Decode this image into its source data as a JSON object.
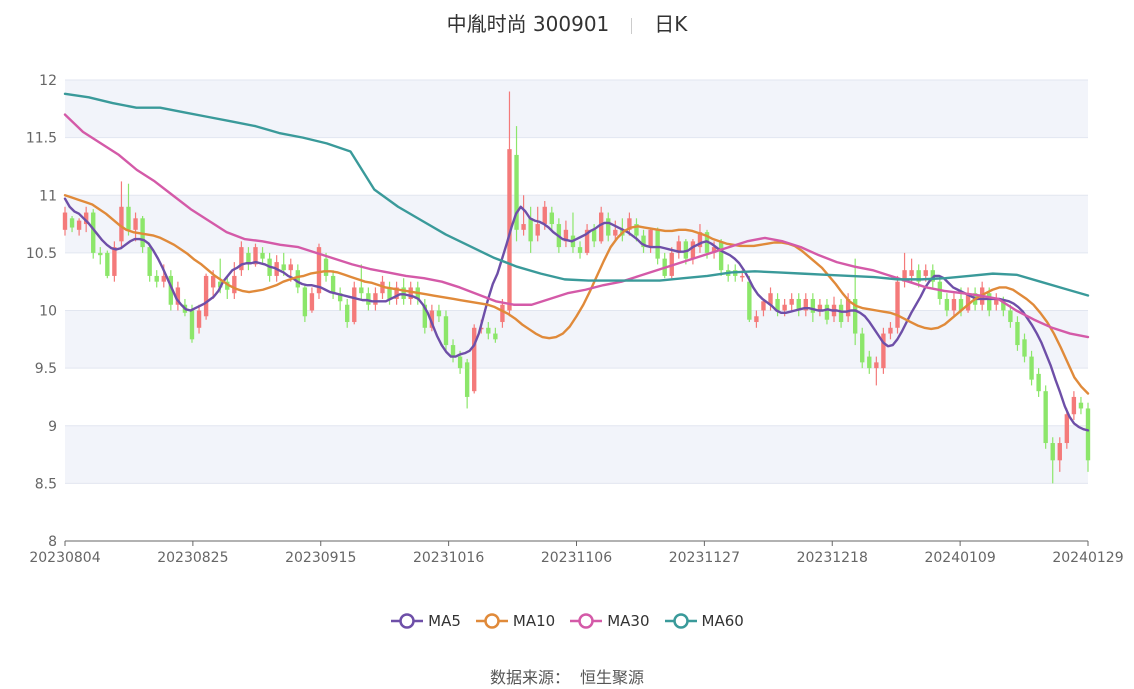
{
  "title": {
    "stock": "中胤时尚 300901",
    "period": "日K"
  },
  "source": {
    "label": "数据来源：",
    "value": "恒生聚源"
  },
  "colors": {
    "up": "#f47a7a",
    "down": "#8ce66a",
    "MA5": "#6e4fa8",
    "MA10": "#e08a3a",
    "MA30": "#d45aa8",
    "MA60": "#3a9a9a",
    "band": "#f2f4fa",
    "grid": "#e2e6f0"
  },
  "chart_data": {
    "type": "candlestick",
    "ylim": [
      8,
      12
    ],
    "yticks": [
      "8",
      "8.5",
      "9",
      "9.5",
      "10",
      "10.5",
      "11",
      "11.5",
      "12"
    ],
    "xticks": [
      "20230804",
      "20230825",
      "20230915",
      "20231016",
      "20231106",
      "20231127",
      "20231218",
      "20240109",
      "20240129"
    ],
    "candles": [
      [
        10.7,
        10.85,
        10.65,
        10.9
      ],
      [
        10.8,
        10.72,
        10.68,
        10.82
      ],
      [
        10.7,
        10.78,
        10.65,
        10.8
      ],
      [
        10.75,
        10.85,
        10.68,
        10.9
      ],
      [
        10.85,
        10.5,
        10.45,
        10.88
      ],
      [
        10.5,
        10.48,
        10.4,
        10.55
      ],
      [
        10.5,
        10.3,
        10.28,
        10.52
      ],
      [
        10.3,
        10.55,
        10.25,
        10.6
      ],
      [
        10.6,
        10.9,
        10.55,
        11.12
      ],
      [
        10.9,
        10.7,
        10.65,
        11.1
      ],
      [
        10.7,
        10.8,
        10.6,
        10.85
      ],
      [
        10.8,
        10.55,
        10.5,
        10.82
      ],
      [
        10.55,
        10.3,
        10.25,
        10.58
      ],
      [
        10.3,
        10.25,
        10.2,
        10.35
      ],
      [
        10.25,
        10.3,
        10.2,
        10.4
      ],
      [
        10.3,
        10.05,
        10.0,
        10.35
      ],
      [
        10.05,
        10.2,
        10.0,
        10.25
      ],
      [
        10.05,
        9.98,
        9.95,
        10.1
      ],
      [
        10.0,
        9.75,
        9.72,
        10.05
      ],
      [
        9.85,
        10.0,
        9.8,
        10.05
      ],
      [
        9.95,
        10.3,
        9.92,
        10.32
      ],
      [
        10.2,
        10.3,
        10.1,
        10.35
      ],
      [
        10.25,
        10.2,
        10.15,
        10.45
      ],
      [
        10.25,
        10.18,
        10.1,
        10.3
      ],
      [
        10.15,
        10.3,
        10.1,
        10.42
      ],
      [
        10.35,
        10.55,
        10.3,
        10.6
      ],
      [
        10.5,
        10.4,
        10.35,
        10.55
      ],
      [
        10.4,
        10.55,
        10.38,
        10.58
      ],
      [
        10.5,
        10.45,
        10.4,
        10.55
      ],
      [
        10.45,
        10.3,
        10.25,
        10.5
      ],
      [
        10.3,
        10.42,
        10.25,
        10.48
      ],
      [
        10.4,
        10.35,
        10.3,
        10.5
      ],
      [
        10.35,
        10.4,
        10.25,
        10.45
      ],
      [
        10.35,
        10.2,
        10.15,
        10.4
      ],
      [
        10.2,
        9.95,
        9.9,
        10.22
      ],
      [
        10.0,
        10.15,
        9.98,
        10.2
      ],
      [
        10.15,
        10.55,
        10.1,
        10.58
      ],
      [
        10.45,
        10.3,
        10.25,
        10.5
      ],
      [
        10.3,
        10.15,
        10.1,
        10.35
      ],
      [
        10.15,
        10.08,
        10.0,
        10.2
      ],
      [
        10.05,
        9.9,
        9.85,
        10.1
      ],
      [
        9.9,
        10.2,
        9.88,
        10.25
      ],
      [
        10.2,
        10.15,
        10.1,
        10.4
      ],
      [
        10.15,
        10.05,
        10.0,
        10.2
      ],
      [
        10.05,
        10.15,
        10.0,
        10.2
      ],
      [
        10.15,
        10.25,
        10.1,
        10.3
      ],
      [
        10.2,
        10.1,
        10.05,
        10.25
      ],
      [
        10.1,
        10.2,
        10.05,
        10.25
      ],
      [
        10.2,
        10.1,
        10.05,
        10.28
      ],
      [
        10.1,
        10.2,
        10.05,
        10.25
      ],
      [
        10.2,
        10.1,
        10.05,
        10.25
      ],
      [
        10.05,
        9.85,
        9.8,
        10.1
      ],
      [
        9.85,
        10.0,
        9.82,
        10.05
      ],
      [
        10.0,
        9.95,
        9.9,
        10.05
      ],
      [
        9.95,
        9.7,
        9.65,
        10.0
      ],
      [
        9.7,
        9.6,
        9.55,
        9.75
      ],
      [
        9.6,
        9.5,
        9.45,
        9.65
      ],
      [
        9.55,
        9.25,
        9.15,
        9.58
      ],
      [
        9.3,
        9.85,
        9.28,
        9.88
      ],
      [
        9.85,
        9.85,
        9.8,
        9.92
      ],
      [
        9.85,
        9.8,
        9.75,
        9.9
      ],
      [
        9.8,
        9.75,
        9.72,
        9.85
      ],
      [
        9.9,
        10.05,
        9.85,
        10.1
      ],
      [
        10.0,
        11.4,
        9.95,
        11.9
      ],
      [
        11.35,
        10.7,
        10.6,
        11.6
      ],
      [
        10.7,
        10.75,
        10.65,
        11.0
      ],
      [
        10.8,
        10.6,
        10.5,
        10.9
      ],
      [
        10.65,
        10.75,
        10.6,
        10.9
      ],
      [
        10.75,
        10.9,
        10.7,
        10.95
      ],
      [
        10.85,
        10.75,
        10.7,
        10.9
      ],
      [
        10.75,
        10.55,
        10.5,
        10.8
      ],
      [
        10.6,
        10.7,
        10.55,
        10.78
      ],
      [
        10.65,
        10.55,
        10.5,
        10.85
      ],
      [
        10.55,
        10.5,
        10.45,
        10.6
      ],
      [
        10.5,
        10.7,
        10.48,
        10.75
      ],
      [
        10.7,
        10.6,
        10.55,
        10.75
      ],
      [
        10.6,
        10.85,
        10.58,
        10.9
      ],
      [
        10.8,
        10.65,
        10.6,
        10.85
      ],
      [
        10.65,
        10.7,
        10.6,
        10.78
      ],
      [
        10.7,
        10.65,
        10.6,
        10.8
      ],
      [
        10.7,
        10.8,
        10.65,
        10.85
      ],
      [
        10.75,
        10.65,
        10.6,
        10.8
      ],
      [
        10.65,
        10.55,
        10.5,
        10.7
      ],
      [
        10.55,
        10.7,
        10.5,
        10.72
      ],
      [
        10.7,
        10.45,
        10.4,
        10.72
      ],
      [
        10.45,
        10.3,
        10.28,
        10.5
      ],
      [
        10.3,
        10.5,
        10.28,
        10.55
      ],
      [
        10.5,
        10.6,
        10.45,
        10.65
      ],
      [
        10.6,
        10.45,
        10.4,
        10.62
      ],
      [
        10.45,
        10.6,
        10.4,
        10.62
      ],
      [
        10.55,
        10.68,
        10.5,
        10.75
      ],
      [
        10.68,
        10.5,
        10.45,
        10.7
      ],
      [
        10.5,
        10.55,
        10.45,
        10.6
      ],
      [
        10.6,
        10.35,
        10.3,
        10.62
      ],
      [
        10.35,
        10.3,
        10.25,
        10.4
      ],
      [
        10.35,
        10.3,
        10.25,
        10.4
      ],
      [
        10.3,
        10.3,
        10.25,
        10.35
      ],
      [
        10.25,
        9.92,
        9.9,
        10.3
      ],
      [
        9.9,
        9.95,
        9.85,
        10.0
      ],
      [
        10.0,
        10.08,
        9.95,
        10.1
      ],
      [
        10.05,
        10.15,
        10.0,
        10.2
      ],
      [
        10.1,
        10.0,
        9.95,
        10.15
      ],
      [
        10.0,
        10.05,
        9.95,
        10.1
      ],
      [
        10.05,
        10.1,
        10.0,
        10.15
      ],
      [
        10.1,
        10.0,
        9.95,
        10.15
      ],
      [
        10.0,
        10.1,
        9.95,
        10.15
      ],
      [
        10.1,
        9.98,
        9.9,
        10.15
      ],
      [
        10.0,
        10.05,
        9.95,
        10.1
      ],
      [
        10.05,
        9.92,
        9.88,
        10.1
      ],
      [
        9.95,
        10.05,
        9.9,
        10.12
      ],
      [
        10.05,
        9.9,
        9.85,
        10.1
      ],
      [
        9.95,
        10.1,
        9.9,
        10.15
      ],
      [
        10.1,
        9.8,
        9.7,
        10.45
      ],
      [
        9.8,
        9.55,
        9.5,
        9.85
      ],
      [
        9.6,
        9.5,
        9.45,
        9.65
      ],
      [
        9.5,
        9.55,
        9.35,
        9.6
      ],
      [
        9.5,
        9.8,
        9.45,
        9.85
      ],
      [
        9.8,
        9.85,
        9.75,
        9.9
      ],
      [
        9.85,
        10.25,
        9.8,
        10.3
      ],
      [
        10.25,
        10.35,
        10.2,
        10.5
      ],
      [
        10.3,
        10.35,
        10.25,
        10.45
      ],
      [
        10.35,
        10.25,
        10.2,
        10.4
      ],
      [
        10.3,
        10.35,
        10.25,
        10.4
      ],
      [
        10.35,
        10.25,
        10.2,
        10.4
      ],
      [
        10.25,
        10.1,
        10.05,
        10.3
      ],
      [
        10.1,
        10.0,
        9.95,
        10.15
      ],
      [
        10.0,
        10.1,
        9.95,
        10.15
      ],
      [
        10.1,
        10.0,
        9.95,
        10.2
      ],
      [
        10.0,
        10.15,
        9.98,
        10.2
      ],
      [
        10.15,
        10.05,
        10.0,
        10.2
      ],
      [
        10.05,
        10.2,
        10.0,
        10.25
      ],
      [
        10.15,
        10.0,
        9.95,
        10.2
      ],
      [
        10.05,
        10.1,
        10.0,
        10.15
      ],
      [
        10.1,
        10.0,
        9.95,
        10.12
      ],
      [
        10.0,
        9.9,
        9.85,
        10.05
      ],
      [
        9.9,
        9.7,
        9.65,
        9.95
      ],
      [
        9.75,
        9.6,
        9.55,
        9.8
      ],
      [
        9.6,
        9.4,
        9.35,
        9.65
      ],
      [
        9.45,
        9.3,
        9.25,
        9.5
      ],
      [
        9.3,
        8.85,
        8.8,
        9.35
      ],
      [
        8.85,
        8.7,
        8.5,
        8.9
      ],
      [
        8.7,
        8.85,
        8.6,
        8.9
      ],
      [
        8.85,
        9.1,
        8.8,
        9.15
      ],
      [
        9.1,
        9.25,
        9.05,
        9.3
      ],
      [
        9.2,
        9.15,
        9.1,
        9.25
      ],
      [
        9.15,
        8.7,
        8.6,
        9.2
      ]
    ],
    "series": [
      {
        "name": "MA5",
        "values": [
          10.97,
          10.9,
          10.86,
          10.84,
          10.8,
          10.76,
          10.71,
          10.66,
          10.61,
          10.57,
          10.54,
          10.53,
          10.54,
          10.57,
          10.6,
          10.62,
          10.62,
          10.61,
          10.58,
          10.52,
          10.45,
          10.37,
          10.28,
          10.19,
          10.1,
          10.05,
          10.01,
          10.0,
          10.02,
          10.04,
          10.06,
          10.09,
          10.12,
          10.17,
          10.25,
          10.3,
          10.35,
          10.37,
          10.4,
          10.41,
          10.41,
          10.42,
          10.41,
          10.4,
          10.38,
          10.37,
          10.35,
          10.33,
          10.3,
          10.28,
          10.25,
          10.23,
          10.22,
          10.22,
          10.21,
          10.2,
          10.18,
          10.16,
          10.15,
          10.14,
          10.13,
          10.12,
          10.11,
          10.1,
          10.09,
          10.09,
          10.08,
          10.08,
          10.08,
          10.08,
          10.1,
          10.12,
          10.14,
          10.14,
          10.13,
          10.12,
          10.1,
          10.05,
          9.98,
          9.88,
          9.78,
          9.7,
          9.64,
          9.6,
          9.6,
          9.62,
          9.63,
          9.65,
          9.7,
          9.8,
          9.95,
          10.1,
          10.23,
          10.32,
          10.45,
          10.58,
          10.72,
          10.84,
          10.9,
          10.86,
          10.8,
          10.78,
          10.77,
          10.75,
          10.72,
          10.68,
          10.65,
          10.62,
          10.61,
          10.6,
          10.62,
          10.64,
          10.66,
          10.69,
          10.71,
          10.74,
          10.76,
          10.76,
          10.74,
          10.72,
          10.7,
          10.68,
          10.65,
          10.62,
          10.58,
          10.56,
          10.55,
          10.55,
          10.55,
          10.54,
          10.53,
          10.52,
          10.51,
          10.51,
          10.52,
          10.55,
          10.57,
          10.59,
          10.6,
          10.58,
          10.55,
          10.52,
          10.5,
          10.48,
          10.45,
          10.41,
          10.35,
          10.28,
          10.2,
          10.14,
          10.1,
          10.07,
          10.04,
          10.0,
          9.98,
          9.98,
          9.99,
          10.0,
          10.01,
          10.02,
          10.02,
          10.01,
          10.0,
          10.0,
          10.01,
          10.0,
          10.0,
          9.99,
          9.99,
          10.0,
          10.0,
          9.98,
          9.95,
          9.9,
          9.84,
          9.78,
          9.72,
          9.69,
          9.7,
          9.75,
          9.82,
          9.9,
          9.98,
          10.05,
          10.12,
          10.2,
          10.26,
          10.3,
          10.3,
          10.28,
          10.24,
          10.2,
          10.18,
          10.16,
          10.14,
          10.12,
          10.1,
          10.1,
          10.1,
          10.1,
          10.1,
          10.1,
          10.09,
          10.08,
          10.06,
          10.03,
          9.99,
          9.93,
          9.87,
          9.8,
          9.72,
          9.62,
          9.52,
          9.4,
          9.29,
          9.17,
          9.08,
          9.02,
          8.99,
          8.97,
          8.96
        ],
        "count_hint": "smooth"
      },
      {
        "name": "MA10",
        "values": [
          11.0,
          10.98,
          10.96,
          10.94,
          10.92,
          10.88,
          10.84,
          10.79,
          10.74,
          10.7,
          10.68,
          10.67,
          10.66,
          10.65,
          10.63,
          10.6,
          10.57,
          10.53,
          10.49,
          10.44,
          10.4,
          10.35,
          10.3,
          10.26,
          10.22,
          10.19,
          10.17,
          10.16,
          10.17,
          10.18,
          10.2,
          10.22,
          10.25,
          10.27,
          10.29,
          10.3,
          10.32,
          10.33,
          10.34,
          10.34,
          10.33,
          10.31,
          10.29,
          10.27,
          10.25,
          10.24,
          10.22,
          10.2,
          10.19,
          10.18,
          10.17,
          10.16,
          10.15,
          10.14,
          10.13,
          10.12,
          10.11,
          10.1,
          10.09,
          10.08,
          10.07,
          10.06,
          10.05,
          10.03,
          10.0,
          9.97,
          9.93,
          9.88,
          9.84,
          9.8,
          9.77,
          9.76,
          9.77,
          9.8,
          9.86,
          9.95,
          10.05,
          10.17,
          10.3,
          10.43,
          10.55,
          10.63,
          10.69,
          10.72,
          10.73,
          10.72,
          10.71,
          10.7,
          10.69,
          10.69,
          10.7,
          10.7,
          10.69,
          10.67,
          10.65,
          10.62,
          10.6,
          10.58,
          10.57,
          10.56,
          10.56,
          10.56,
          10.57,
          10.58,
          10.59,
          10.59,
          10.58,
          10.56,
          10.52,
          10.47,
          10.42,
          10.37,
          10.3,
          10.23,
          10.15,
          10.08,
          10.04,
          10.02,
          10.01,
          10.0,
          9.99,
          9.98,
          9.96,
          9.93,
          9.9,
          9.87,
          9.85,
          9.84,
          9.85,
          9.88,
          9.93,
          9.98,
          10.03,
          10.08,
          10.12,
          10.15,
          10.18,
          10.2,
          10.2,
          10.18,
          10.14,
          10.1,
          10.05,
          9.98,
          9.9,
          9.8,
          9.68,
          9.55,
          9.42,
          9.34,
          9.28
        ],
        "count_hint": "smooth"
      },
      {
        "name": "MA30",
        "values": [
          11.7,
          11.55,
          11.45,
          11.35,
          11.22,
          11.12,
          11.0,
          10.88,
          10.78,
          10.68,
          10.62,
          10.6,
          10.57,
          10.55,
          10.5,
          10.45,
          10.4,
          10.36,
          10.33,
          10.3,
          10.28,
          10.25,
          10.2,
          10.14,
          10.08,
          10.05,
          10.05,
          10.1,
          10.15,
          10.18,
          10.22,
          10.25,
          10.3,
          10.35,
          10.4,
          10.45,
          10.5,
          10.55,
          10.6,
          10.63,
          10.6,
          10.55,
          10.48,
          10.42,
          10.38,
          10.35,
          10.3,
          10.25,
          10.2,
          10.17,
          10.15,
          10.13,
          10.1,
          10.0,
          9.92,
          9.85,
          9.8,
          9.77
        ],
        "count_hint": "smooth"
      },
      {
        "name": "MA60",
        "values": [
          11.88,
          11.85,
          11.8,
          11.76,
          11.76,
          11.72,
          11.68,
          11.64,
          11.6,
          11.54,
          11.5,
          11.45,
          11.38,
          11.05,
          10.9,
          10.78,
          10.66,
          10.56,
          10.46,
          10.38,
          10.32,
          10.27,
          10.26,
          10.26,
          10.26,
          10.26,
          10.28,
          10.3,
          10.33,
          10.34,
          10.33,
          10.32,
          10.31,
          10.3,
          10.29,
          10.27,
          10.27,
          10.28,
          10.3,
          10.32,
          10.31,
          10.25,
          10.19,
          10.13
        ],
        "count_hint": "smooth"
      }
    ],
    "legend": [
      "MA5",
      "MA10",
      "MA30",
      "MA60"
    ],
    "legend_position": "bottom-center",
    "grid": true
  }
}
